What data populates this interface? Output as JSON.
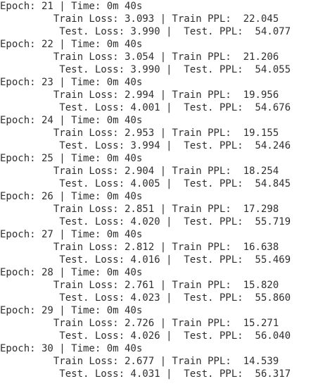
{
  "log": {
    "lines": [
      "Epoch: 21 | Time: 0m 40s",
      "\tTrain Loss: 3.093 | Train PPL:  22.045",
      "\t Test. Loss: 3.990 |  Test. PPL:  54.077",
      "Epoch: 22 | Time: 0m 40s",
      "\tTrain Loss: 3.054 | Train PPL:  21.206",
      "\t Test. Loss: 3.990 |  Test. PPL:  54.055",
      "Epoch: 23 | Time: 0m 40s",
      "\tTrain Loss: 2.994 | Train PPL:  19.956",
      "\t Test. Loss: 4.001 |  Test. PPL:  54.676",
      "Epoch: 24 | Time: 0m 40s",
      "\tTrain Loss: 2.953 | Train PPL:  19.155",
      "\t Test. Loss: 3.994 |  Test. PPL:  54.246",
      "Epoch: 25 | Time: 0m 40s",
      "\tTrain Loss: 2.904 | Train PPL:  18.254",
      "\t Test. Loss: 4.005 |  Test. PPL:  54.845",
      "Epoch: 26 | Time: 0m 40s",
      "\tTrain Loss: 2.851 | Train PPL:  17.298",
      "\t Test. Loss: 4.020 |  Test. PPL:  55.719",
      "Epoch: 27 | Time: 0m 40s",
      "\tTrain Loss: 2.812 | Train PPL:  16.638",
      "\t Test. Loss: 4.016 |  Test. PPL:  55.469",
      "Epoch: 28 | Time: 0m 40s",
      "\tTrain Loss: 2.761 | Train PPL:  15.820",
      "\t Test. Loss: 4.023 |  Test. PPL:  55.860",
      "Epoch: 29 | Time: 0m 40s",
      "\tTrain Loss: 2.726 | Train PPL:  15.271",
      "\t Test. Loss: 4.026 |  Test. PPL:  56.040",
      "Epoch: 30 | Time: 0m 40s",
      "\tTrain Loss: 2.677 | Train PPL:  14.539",
      "\t Test. Loss: 4.031 |  Test. PPL:  56.317"
    ]
  }
}
